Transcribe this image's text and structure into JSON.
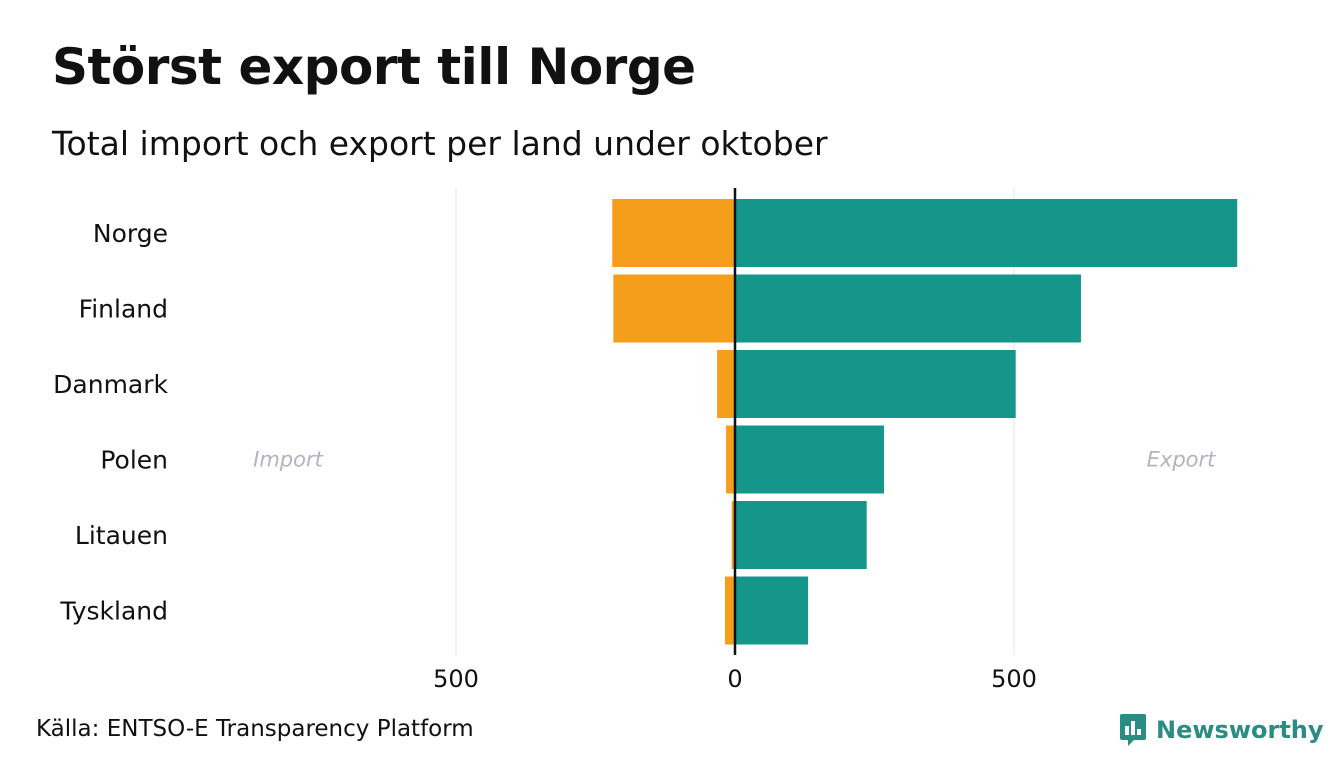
{
  "header": {
    "title": "Störst export till Norge",
    "subtitle": "Total import och export per land under oktober"
  },
  "footer": {
    "source": "Källa: ENTSO-E Transparency Platform",
    "brand": "Newsworthy"
  },
  "colors": {
    "import": "#f59e1b",
    "export": "#15968a",
    "zero_line": "#111111",
    "grid": "#e6e6e6",
    "annotation": "#b4b4c0",
    "brand": "#2a8c82"
  },
  "icons": {
    "brand_logo": "chart-bubble-icon"
  },
  "chart_data": {
    "type": "bar",
    "orientation": "horizontal-diverging",
    "title": "Störst export till Norge",
    "subtitle": "Total import och export per land under oktober",
    "categories": [
      "Norge",
      "Finland",
      "Danmark",
      "Polen",
      "Litauen",
      "Tyskland"
    ],
    "series": [
      {
        "name": "Import",
        "values": [
          220,
          218,
          32,
          16,
          6,
          18
        ]
      },
      {
        "name": "Export",
        "values": [
          900,
          620,
          503,
          267,
          236,
          131
        ]
      }
    ],
    "x_ticks": [
      {
        "value": -500,
        "label": "500"
      },
      {
        "value": 0,
        "label": "0"
      },
      {
        "value": 500,
        "label": "500"
      }
    ],
    "xlim": [
      -1000,
      1000
    ],
    "annotations": {
      "left": "Import",
      "right": "Export"
    },
    "grid": true,
    "xlabel": "",
    "ylabel": ""
  }
}
